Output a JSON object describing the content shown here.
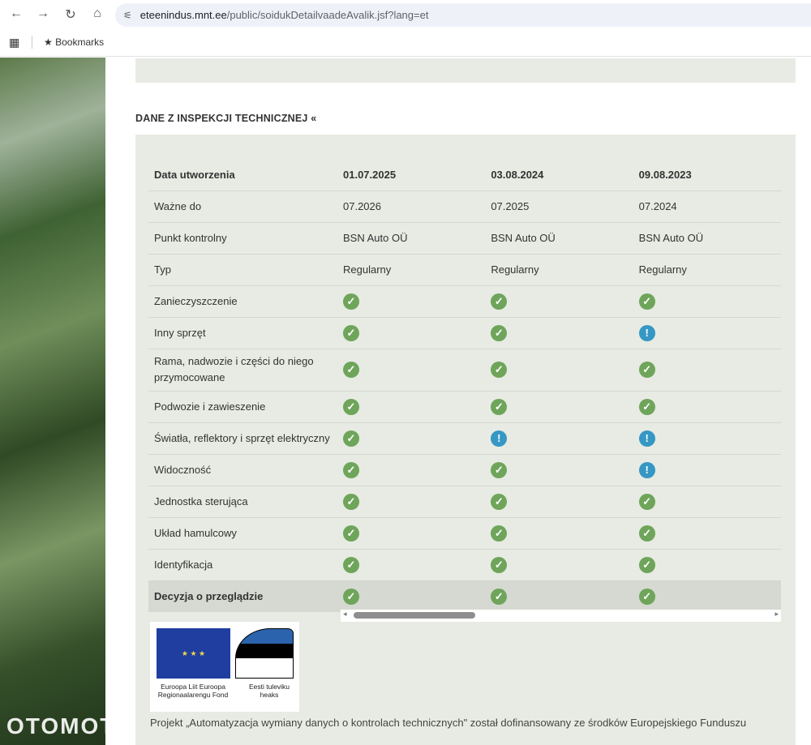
{
  "browser": {
    "url_domain": "eteenindus.mnt.ee",
    "url_path": "/public/soidukDetailvaadeAvalik.jsf?lang=et",
    "bookmarks_label": "Bookmarks"
  },
  "section": {
    "title": "DANE Z INSPEKCJI TECHNICZNEJ",
    "toggle_icon": "chevron-double-up-icon"
  },
  "table": {
    "header": {
      "label": "Data utworzenia",
      "cols": [
        "01.07.2025",
        "03.08.2024",
        "09.08.2023"
      ]
    },
    "text_rows": [
      {
        "label": "Ważne do",
        "values": [
          "07.2026",
          "07.2025",
          "07.2024"
        ]
      },
      {
        "label": "Punkt kontrolny",
        "values": [
          "BSN Auto OÜ",
          "BSN Auto OÜ",
          "BSN Auto OÜ"
        ]
      },
      {
        "label": "Typ",
        "values": [
          "Regularny",
          "Regularny",
          "Regularny"
        ]
      }
    ],
    "status_rows": [
      {
        "label": "Zanieczyszczenie",
        "values": [
          "ok",
          "ok",
          "ok"
        ]
      },
      {
        "label": "Inny sprzęt",
        "values": [
          "ok",
          "ok",
          "warning"
        ]
      },
      {
        "label": "Rama, nadwozie i części do niego przymocowane",
        "values": [
          "ok",
          "ok",
          "ok"
        ]
      },
      {
        "label": "Podwozie i zawieszenie",
        "values": [
          "ok",
          "ok",
          "ok"
        ]
      },
      {
        "label": "Światła, reflektory i sprzęt elektryczny",
        "values": [
          "ok",
          "warning",
          "warning"
        ]
      },
      {
        "label": "Widoczność",
        "values": [
          "ok",
          "ok",
          "warning"
        ]
      },
      {
        "label": "Jednostka sterująca",
        "values": [
          "ok",
          "ok",
          "ok"
        ]
      },
      {
        "label": "Układ hamulcowy",
        "values": [
          "ok",
          "ok",
          "ok"
        ]
      },
      {
        "label": "Identyfikacja",
        "values": [
          "ok",
          "ok",
          "ok"
        ]
      },
      {
        "label": "Decyzja o przeglądzie",
        "values": [
          "ok",
          "ok",
          "ok"
        ]
      }
    ],
    "colors": {
      "ok": "#6ea55a",
      "warning": "#3597c4"
    }
  },
  "logos": {
    "eu_text": "Euroopa Liit Euroopa Regionaalarengu Fond",
    "ee_text": "Eesti tuleviku heaks"
  },
  "footer_text": "Projekt „Automatyzacja wymiany danych o kontrolach technicznych\" został dofinansowany ze środków Europejskiego Funduszu",
  "watermark": "OTOMOTO"
}
